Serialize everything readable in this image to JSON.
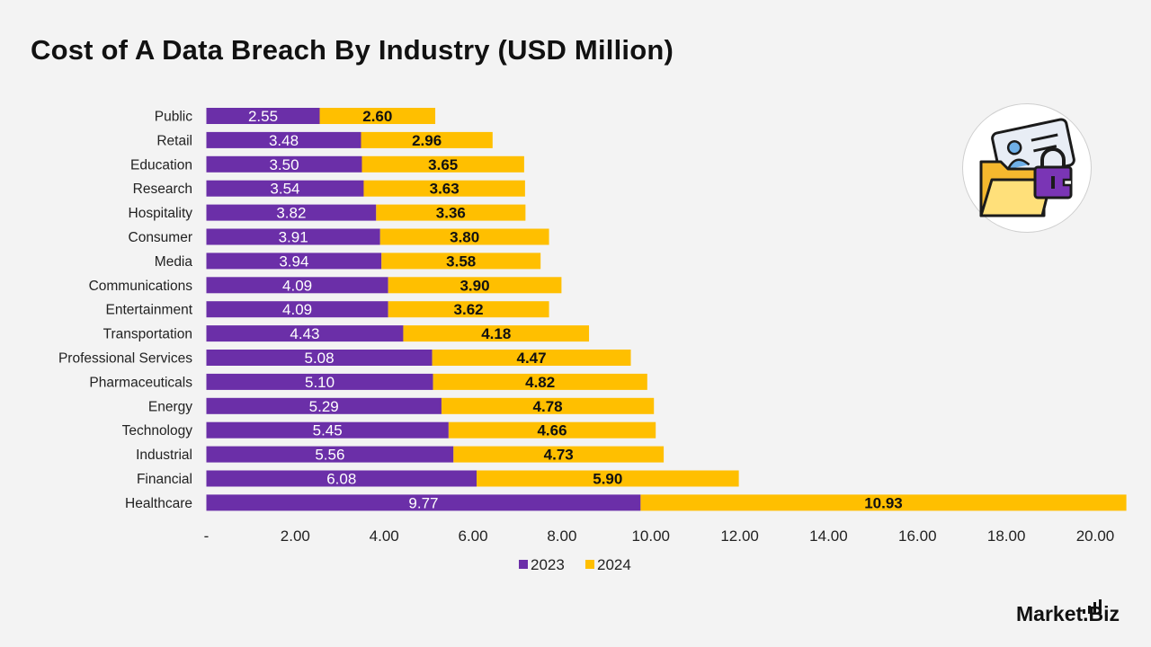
{
  "title": "Cost of A Data Breach By Industry (USD Million)",
  "logo": {
    "text": "Market.Biz"
  },
  "illustration": {
    "icon": "data-lock-folder-icon"
  },
  "colors": {
    "series_2023": "#6b2fa8",
    "series_2024": "#ffbf00",
    "background": "#f3f3f3"
  },
  "chart_data": {
    "type": "bar",
    "orientation": "horizontal",
    "stacked": true,
    "title": "Cost of A Data Breach By Industry (USD Million)",
    "categories": [
      "Public",
      "Retail",
      "Education",
      "Research",
      "Hospitality",
      "Consumer",
      "Media",
      "Communications",
      "Entertainment",
      "Transportation",
      "Professional Services",
      "Pharmaceuticals",
      "Energy",
      "Technology",
      "Industrial",
      "Financial",
      "Healthcare"
    ],
    "series": [
      {
        "name": "2023",
        "values": [
          2.55,
          3.48,
          3.5,
          3.54,
          3.82,
          3.91,
          3.94,
          4.09,
          4.09,
          4.43,
          5.08,
          5.1,
          5.29,
          5.45,
          5.56,
          6.08,
          9.77
        ],
        "labels": [
          "2.55",
          "3.48",
          "3.50",
          "3.54",
          "3.82",
          "3.91",
          "3.94",
          "4.09",
          "4.09",
          "4.43",
          "5.08",
          "5.10",
          "5.29",
          "5.45",
          "5.56",
          "6.08",
          "9.77"
        ]
      },
      {
        "name": "2024",
        "values": [
          2.6,
          2.96,
          3.65,
          3.63,
          3.36,
          3.8,
          3.58,
          3.9,
          3.62,
          4.18,
          4.47,
          4.82,
          4.78,
          4.66,
          4.73,
          5.9,
          10.93
        ],
        "labels": [
          "2.60",
          "2.96",
          "3.65",
          "3.63",
          "3.36",
          "3.80",
          "3.58",
          "3.90",
          "3.62",
          "4.18",
          "4.47",
          "4.82",
          "4.78",
          "4.66",
          "4.73",
          "5.90",
          "10.93"
        ]
      }
    ],
    "xlim": [
      0,
      20
    ],
    "x_ticks": [
      0,
      2,
      4,
      6,
      8,
      10,
      12,
      14,
      16,
      18,
      20
    ],
    "x_tick_labels": [
      "-",
      "2.00",
      "4.00",
      "6.00",
      "8.00",
      "10.00",
      "12.00",
      "14.00",
      "16.00",
      "18.00",
      "20.00"
    ],
    "xlabel": "",
    "ylabel": "",
    "grid": false,
    "legend": "bottom"
  }
}
